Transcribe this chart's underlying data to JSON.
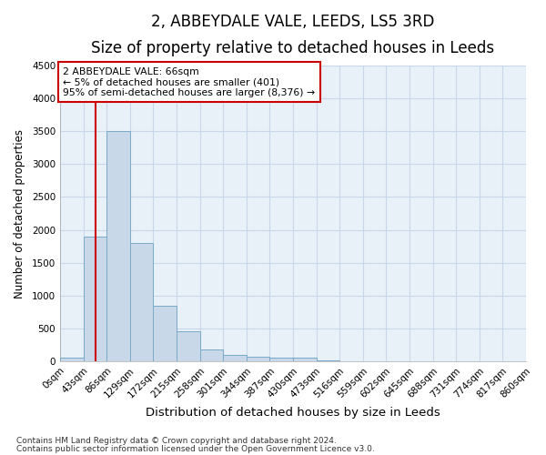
{
  "title": "2, ABBEYDALE VALE, LEEDS, LS5 3RD",
  "subtitle": "Size of property relative to detached houses in Leeds",
  "xlabel": "Distribution of detached houses by size in Leeds",
  "ylabel": "Number of detached properties",
  "footnote1": "Contains HM Land Registry data © Crown copyright and database right 2024.",
  "footnote2": "Contains public sector information licensed under the Open Government Licence v3.0.",
  "bin_edges": [
    0,
    43,
    86,
    129,
    172,
    215,
    258,
    301,
    344,
    387,
    430,
    473,
    516,
    559,
    602,
    645,
    688,
    731,
    774,
    817,
    860
  ],
  "bar_heights": [
    50,
    1900,
    3500,
    1800,
    850,
    450,
    175,
    100,
    75,
    60,
    55,
    20,
    5,
    3,
    2,
    2,
    1,
    1,
    1,
    1
  ],
  "bar_color": "#c8d8e8",
  "bar_edgecolor": "#7aaac8",
  "property_line_x": 66,
  "property_line_color": "#cc0000",
  "annotation_line1": "2 ABBEYDALE VALE: 66sqm",
  "annotation_line2": "← 5% of detached houses are smaller (401)",
  "annotation_line3": "95% of semi-detached houses are larger (8,376) →",
  "annotation_box_color": "#ffffff",
  "annotation_box_edgecolor": "#cc0000",
  "ylim": [
    0,
    4500
  ],
  "yticks": [
    0,
    500,
    1000,
    1500,
    2000,
    2500,
    3000,
    3500,
    4000,
    4500
  ],
  "grid_color": "#c8d8e8",
  "bg_color": "#dde8f0",
  "plot_bg_color": "#e8f0f8",
  "title_fontsize": 12,
  "subtitle_fontsize": 10,
  "tick_label_fontsize": 7.5,
  "ylabel_fontsize": 8.5,
  "xlabel_fontsize": 9.5,
  "footnote_fontsize": 6.5
}
